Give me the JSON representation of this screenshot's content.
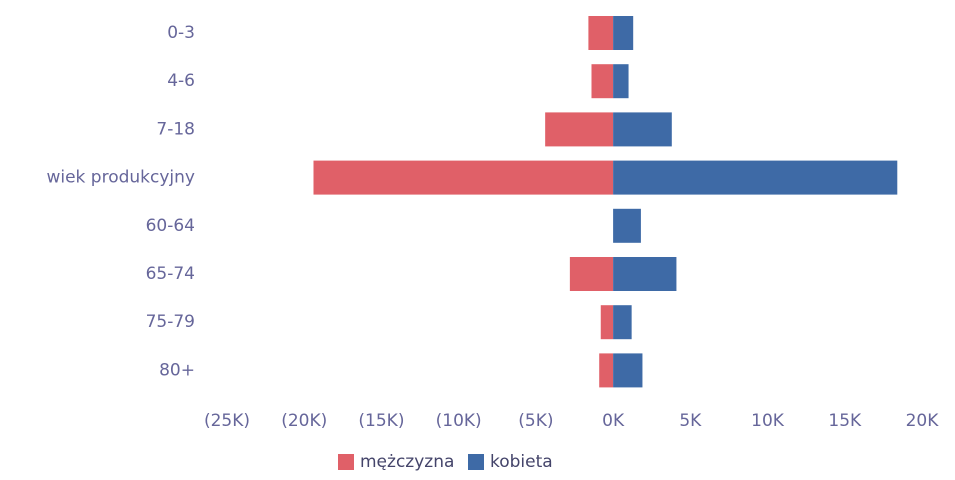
{
  "chart_data": {
    "type": "bar",
    "orientation": "horizontal",
    "stacked": true,
    "categories": [
      "0-3",
      "4-6",
      "7-18",
      "wiek produkcyjny",
      "60-64",
      "65-74",
      "75-79",
      "80+"
    ],
    "series": [
      {
        "name": "mężczyzna",
        "color": "#e06068",
        "values": [
          -1600,
          -1400,
          -4400,
          -19400,
          0,
          -2800,
          -800,
          -900
        ]
      },
      {
        "name": "kobieta",
        "color": "#3e6aa6",
        "values": [
          1300,
          1000,
          3800,
          18400,
          1800,
          4100,
          1200,
          1900
        ]
      }
    ],
    "xlim": [
      -25000,
      20000
    ],
    "x_ticks": [
      -25000,
      -20000,
      -15000,
      -10000,
      -5000,
      0,
      5000,
      10000,
      15000,
      20000
    ],
    "x_tick_labels": [
      "(25K)",
      "(20K)",
      "(15K)",
      "(10K)",
      "(5K)",
      "0K",
      "5K",
      "10K",
      "15K",
      "20K"
    ],
    "legend": [
      "mężczyzna",
      "kobieta"
    ],
    "legend_position": "bottom",
    "grid": false
  }
}
